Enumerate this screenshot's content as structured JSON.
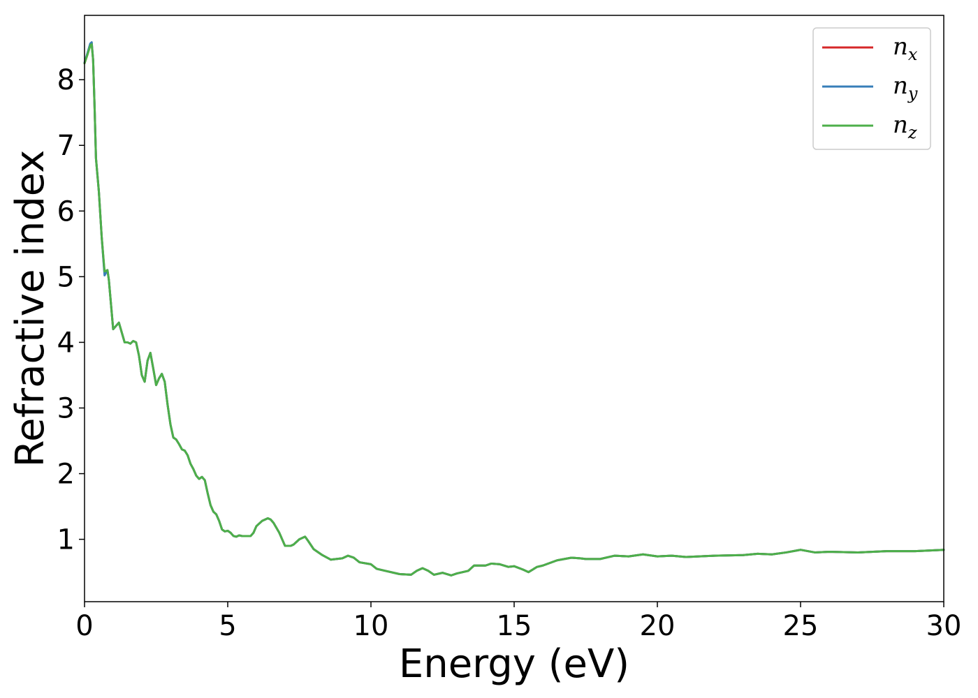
{
  "chart_data": {
    "type": "line",
    "xlabel": "Energy (eV)",
    "ylabel": "Refractive index",
    "xlim": [
      0,
      30
    ],
    "ylim": [
      0.05,
      8.98
    ],
    "xticks": [
      0,
      5,
      10,
      15,
      20,
      25,
      30
    ],
    "yticks": [
      1,
      2,
      3,
      4,
      5,
      6,
      7,
      8
    ],
    "grid": false,
    "legend_position": "top-right",
    "series": [
      {
        "name": "n_x",
        "label_main": "n",
        "label_sub": "x",
        "color": "#d62728",
        "x": [
          0,
          0.1,
          0.2,
          0.25,
          0.3,
          0.35,
          0.4,
          0.5,
          0.6,
          0.7,
          0.8,
          0.85,
          0.9,
          1.0,
          1.1,
          1.2,
          1.3,
          1.4,
          1.5,
          1.6,
          1.7,
          1.8,
          1.9,
          2.0,
          2.1,
          2.2,
          2.3,
          2.4,
          2.5,
          2.6,
          2.7,
          2.8,
          2.9,
          3.0,
          3.1,
          3.2,
          3.3,
          3.4,
          3.5,
          3.6,
          3.7,
          3.8,
          3.9,
          4.0,
          4.1,
          4.2,
          4.3,
          4.4,
          4.5,
          4.6,
          4.7,
          4.8,
          4.9,
          5.0,
          5.1,
          5.2,
          5.3,
          5.4,
          5.5,
          5.6,
          5.7,
          5.8,
          5.9,
          6.0,
          6.2,
          6.4,
          6.5,
          6.6,
          6.8,
          7.0,
          7.2,
          7.3,
          7.5,
          7.7,
          7.8,
          8.0,
          8.3,
          8.6,
          9.0,
          9.2,
          9.4,
          9.6,
          10.0,
          10.2,
          10.5,
          11.0,
          11.4,
          11.6,
          11.8,
          12.0,
          12.2,
          12.5,
          12.8,
          13.0,
          13.2,
          13.4,
          13.6,
          14.0,
          14.2,
          14.5,
          14.8,
          15.0,
          15.3,
          15.5,
          15.8,
          16.0,
          16.5,
          17.0,
          17.3,
          17.5,
          18.0,
          18.5,
          19.0,
          19.5,
          20.0,
          20.5,
          21.0,
          22.0,
          23.0,
          23.5,
          24.0,
          24.5,
          25.0,
          25.5,
          26.0,
          27.0,
          28.0,
          29.0,
          30.0
        ],
        "y": [
          8.25,
          8.38,
          8.53,
          8.56,
          8.3,
          7.6,
          6.8,
          6.3,
          5.6,
          5.05,
          5.1,
          4.95,
          4.7,
          4.2,
          4.25,
          4.3,
          4.15,
          4.0,
          4.0,
          3.98,
          4.02,
          4.0,
          3.8,
          3.5,
          3.4,
          3.72,
          3.84,
          3.6,
          3.35,
          3.45,
          3.52,
          3.4,
          3.05,
          2.75,
          2.55,
          2.52,
          2.45,
          2.37,
          2.35,
          2.28,
          2.15,
          2.07,
          1.97,
          1.92,
          1.95,
          1.9,
          1.7,
          1.52,
          1.42,
          1.38,
          1.28,
          1.15,
          1.12,
          1.13,
          1.1,
          1.05,
          1.04,
          1.06,
          1.05,
          1.05,
          1.05,
          1.05,
          1.1,
          1.2,
          1.28,
          1.32,
          1.3,
          1.25,
          1.1,
          0.9,
          0.9,
          0.92,
          1.0,
          1.04,
          0.98,
          0.85,
          0.76,
          0.69,
          0.71,
          0.75,
          0.72,
          0.65,
          0.62,
          0.55,
          0.52,
          0.47,
          0.46,
          0.52,
          0.56,
          0.52,
          0.46,
          0.49,
          0.45,
          0.48,
          0.5,
          0.52,
          0.6,
          0.6,
          0.63,
          0.62,
          0.58,
          0.59,
          0.54,
          0.5,
          0.58,
          0.6,
          0.68,
          0.72,
          0.71,
          0.7,
          0.7,
          0.75,
          0.74,
          0.77,
          0.74,
          0.75,
          0.73,
          0.75,
          0.76,
          0.78,
          0.77,
          0.8,
          0.84,
          0.8,
          0.81,
          0.8,
          0.82,
          0.82,
          0.84
        ]
      },
      {
        "name": "n_y",
        "label_main": "n",
        "label_sub": "y",
        "color": "#377eb8",
        "x": [
          0,
          0.1,
          0.2,
          0.25,
          0.3,
          0.35,
          0.4,
          0.5,
          0.6,
          0.7,
          0.8,
          0.85,
          0.9,
          1.0,
          1.1,
          1.2,
          1.3,
          1.4,
          1.5,
          1.6,
          1.7,
          1.8,
          1.9,
          2.0,
          2.1,
          2.2,
          2.3,
          2.4,
          2.5,
          2.6,
          2.7,
          2.8,
          2.9,
          3.0,
          3.1,
          3.2,
          3.3,
          3.4,
          3.5,
          3.6,
          3.7,
          3.8,
          3.9,
          4.0,
          4.1,
          4.2,
          4.3,
          4.4,
          4.5,
          4.6,
          4.7,
          4.8,
          4.9,
          5.0,
          5.1,
          5.2,
          5.3,
          5.4,
          5.5,
          5.6,
          5.7,
          5.8,
          5.9,
          6.0,
          6.2,
          6.4,
          6.5,
          6.6,
          6.8,
          7.0,
          7.2,
          7.3,
          7.5,
          7.7,
          7.8,
          8.0,
          8.3,
          8.6,
          9.0,
          9.2,
          9.4,
          9.6,
          10.0,
          10.2,
          10.5,
          11.0,
          11.4,
          11.6,
          11.8,
          12.0,
          12.2,
          12.5,
          12.8,
          13.0,
          13.2,
          13.4,
          13.6,
          14.0,
          14.2,
          14.5,
          14.8,
          15.0,
          15.3,
          15.5,
          15.8,
          16.0,
          16.5,
          17.0,
          17.3,
          17.5,
          18.0,
          18.5,
          19.0,
          19.5,
          20.0,
          20.5,
          21.0,
          22.0,
          23.0,
          23.5,
          24.0,
          24.5,
          25.0,
          25.5,
          26.0,
          27.0,
          28.0,
          29.0,
          30.0
        ],
        "y": [
          8.26,
          8.4,
          8.55,
          8.57,
          8.3,
          7.6,
          6.8,
          6.3,
          5.6,
          5.02,
          5.1,
          4.95,
          4.7,
          4.2,
          4.25,
          4.3,
          4.15,
          4.0,
          4.0,
          3.98,
          4.02,
          4.0,
          3.8,
          3.5,
          3.4,
          3.72,
          3.84,
          3.6,
          3.35,
          3.45,
          3.52,
          3.4,
          3.05,
          2.75,
          2.55,
          2.52,
          2.45,
          2.37,
          2.35,
          2.28,
          2.15,
          2.07,
          1.97,
          1.92,
          1.95,
          1.9,
          1.7,
          1.52,
          1.42,
          1.38,
          1.28,
          1.15,
          1.12,
          1.13,
          1.1,
          1.05,
          1.04,
          1.06,
          1.05,
          1.05,
          1.05,
          1.05,
          1.1,
          1.2,
          1.28,
          1.32,
          1.3,
          1.25,
          1.1,
          0.9,
          0.9,
          0.92,
          1.0,
          1.04,
          0.98,
          0.85,
          0.76,
          0.69,
          0.71,
          0.75,
          0.72,
          0.65,
          0.62,
          0.55,
          0.52,
          0.47,
          0.46,
          0.52,
          0.56,
          0.52,
          0.46,
          0.49,
          0.45,
          0.48,
          0.5,
          0.52,
          0.6,
          0.6,
          0.63,
          0.62,
          0.58,
          0.59,
          0.54,
          0.5,
          0.58,
          0.6,
          0.68,
          0.72,
          0.71,
          0.7,
          0.7,
          0.75,
          0.74,
          0.77,
          0.74,
          0.75,
          0.73,
          0.75,
          0.76,
          0.78,
          0.77,
          0.8,
          0.84,
          0.8,
          0.81,
          0.8,
          0.82,
          0.82,
          0.84
        ]
      },
      {
        "name": "n_z",
        "label_main": "n",
        "label_sub": "z",
        "color": "#4daf4a",
        "x": [
          0,
          0.1,
          0.2,
          0.25,
          0.3,
          0.35,
          0.4,
          0.5,
          0.6,
          0.7,
          0.8,
          0.85,
          0.9,
          1.0,
          1.1,
          1.2,
          1.3,
          1.4,
          1.5,
          1.6,
          1.7,
          1.8,
          1.9,
          2.0,
          2.1,
          2.2,
          2.3,
          2.4,
          2.5,
          2.6,
          2.7,
          2.8,
          2.9,
          3.0,
          3.1,
          3.2,
          3.3,
          3.4,
          3.5,
          3.6,
          3.7,
          3.8,
          3.9,
          4.0,
          4.1,
          4.2,
          4.3,
          4.4,
          4.5,
          4.6,
          4.7,
          4.8,
          4.9,
          5.0,
          5.1,
          5.2,
          5.3,
          5.4,
          5.5,
          5.6,
          5.7,
          5.8,
          5.9,
          6.0,
          6.2,
          6.4,
          6.5,
          6.6,
          6.8,
          7.0,
          7.2,
          7.3,
          7.5,
          7.7,
          7.8,
          8.0,
          8.3,
          8.6,
          9.0,
          9.2,
          9.4,
          9.6,
          10.0,
          10.2,
          10.5,
          11.0,
          11.4,
          11.6,
          11.8,
          12.0,
          12.2,
          12.5,
          12.8,
          13.0,
          13.2,
          13.4,
          13.6,
          14.0,
          14.2,
          14.5,
          14.8,
          15.0,
          15.3,
          15.5,
          15.8,
          16.0,
          16.5,
          17.0,
          17.3,
          17.5,
          18.0,
          18.5,
          19.0,
          19.5,
          20.0,
          20.5,
          21.0,
          22.0,
          23.0,
          23.5,
          24.0,
          24.5,
          25.0,
          25.5,
          26.0,
          27.0,
          28.0,
          29.0,
          30.0
        ],
        "y": [
          8.25,
          8.38,
          8.52,
          8.54,
          8.3,
          7.6,
          6.8,
          6.3,
          5.6,
          5.08,
          5.1,
          4.95,
          4.7,
          4.2,
          4.25,
          4.3,
          4.15,
          4.0,
          4.0,
          3.98,
          4.02,
          4.0,
          3.8,
          3.5,
          3.4,
          3.72,
          3.84,
          3.6,
          3.35,
          3.45,
          3.52,
          3.4,
          3.05,
          2.75,
          2.55,
          2.52,
          2.45,
          2.37,
          2.35,
          2.28,
          2.15,
          2.07,
          1.97,
          1.92,
          1.95,
          1.9,
          1.7,
          1.52,
          1.42,
          1.38,
          1.28,
          1.15,
          1.12,
          1.13,
          1.1,
          1.05,
          1.04,
          1.06,
          1.05,
          1.05,
          1.05,
          1.05,
          1.1,
          1.2,
          1.28,
          1.32,
          1.3,
          1.25,
          1.1,
          0.9,
          0.9,
          0.92,
          1.0,
          1.04,
          0.98,
          0.85,
          0.76,
          0.69,
          0.71,
          0.75,
          0.72,
          0.65,
          0.62,
          0.55,
          0.52,
          0.47,
          0.46,
          0.52,
          0.56,
          0.52,
          0.46,
          0.49,
          0.45,
          0.48,
          0.5,
          0.52,
          0.6,
          0.6,
          0.63,
          0.62,
          0.58,
          0.59,
          0.54,
          0.5,
          0.58,
          0.6,
          0.68,
          0.72,
          0.71,
          0.7,
          0.7,
          0.75,
          0.74,
          0.77,
          0.74,
          0.75,
          0.73,
          0.75,
          0.76,
          0.78,
          0.77,
          0.8,
          0.84,
          0.8,
          0.81,
          0.8,
          0.82,
          0.82,
          0.84
        ]
      }
    ]
  }
}
